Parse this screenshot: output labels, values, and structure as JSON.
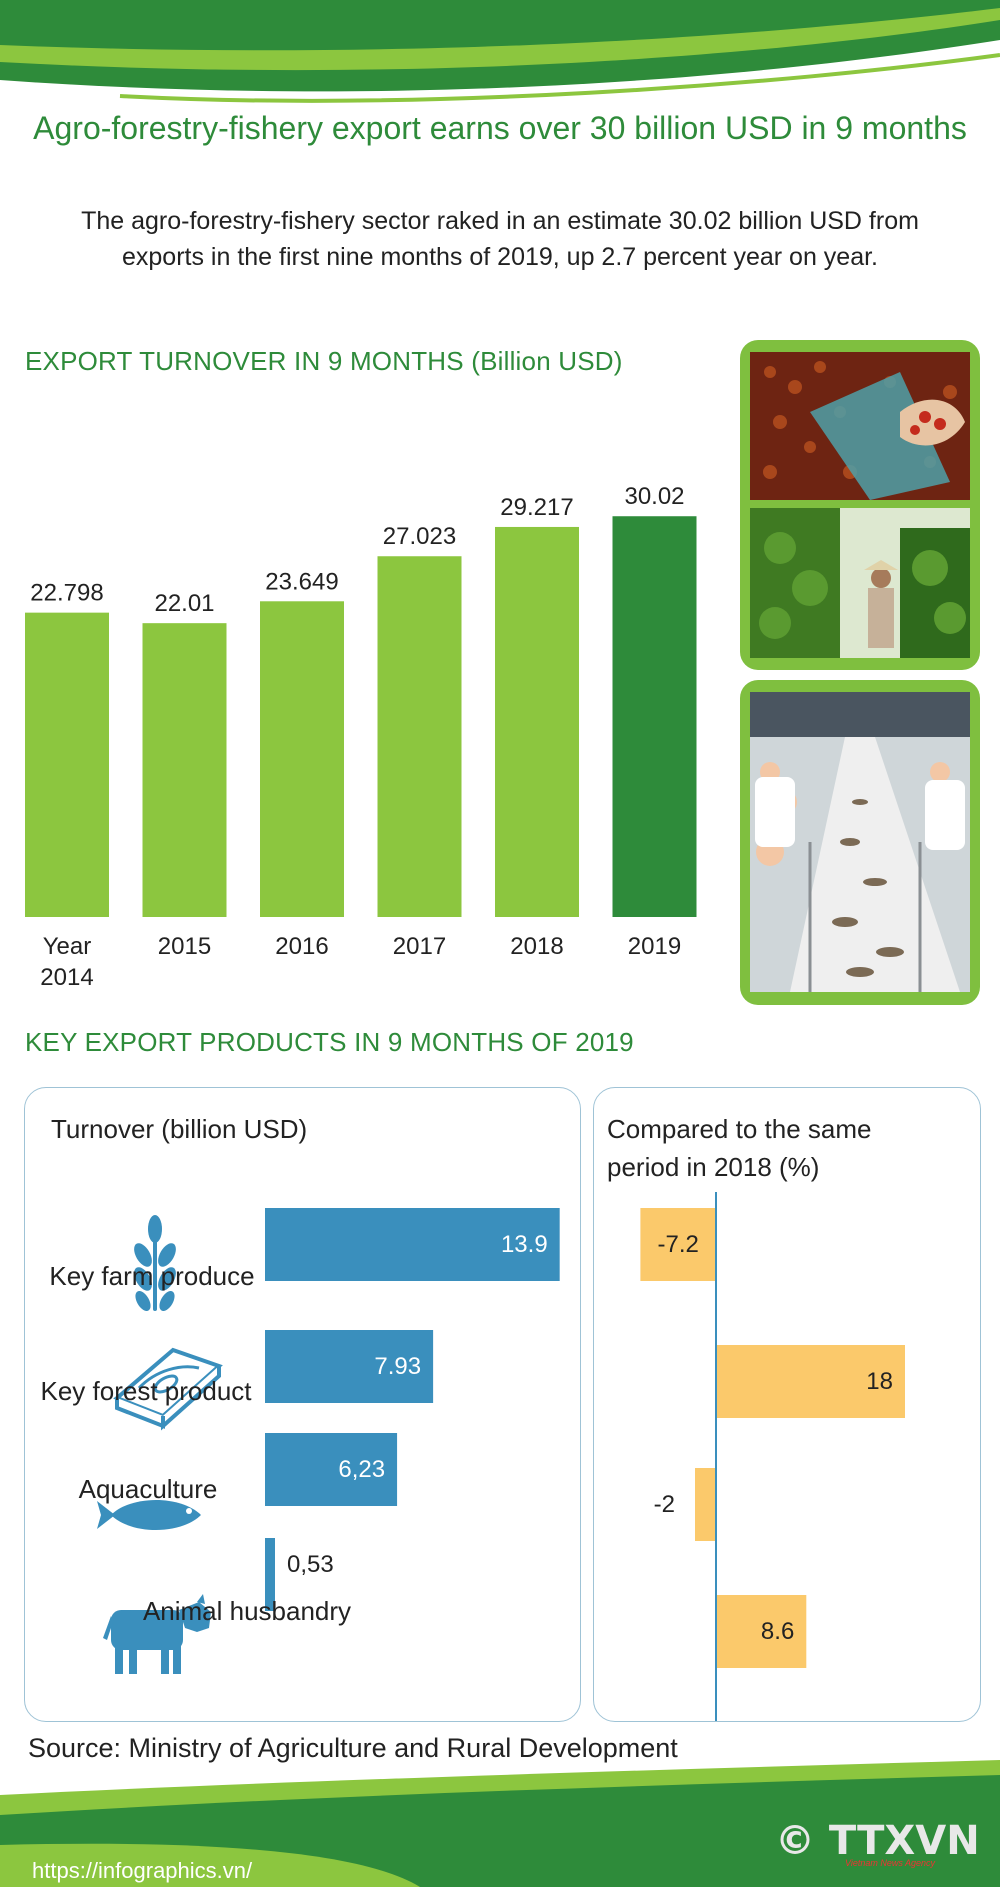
{
  "title": "Agro-forestry-fishery export earns over 30 billion USD in 9 months",
  "intro": "The agro-forestry-fishery sector raked in an estimate 30.02 billion USD from exports in the first nine months of 2019, up 2.7 percent year on year.",
  "sections": {
    "turnover_heading": "EXPORT TURNOVER IN 9 MONTHS (Billion USD)",
    "products_heading": "KEY EXPORT PRODUCTS IN 9 MONTHS OF 2019",
    "turnover_col_heading": "Turnover (billion USD)",
    "compare_col_heading_line1": "Compared to the same",
    "compare_col_heading_line2": "period in 2018 (%)"
  },
  "colors": {
    "brand_green": "#2e8b3a",
    "bar_light": "#8cc63f",
    "bar_dark": "#2e8b3a",
    "product_bar": "#3a8fbd",
    "change_bar": "#fbc96b",
    "icon_blue": "#3a8fbd"
  },
  "icons": [
    "wheat-icon",
    "wood-plank-icon",
    "fish-icon",
    "cow-icon"
  ],
  "chart_data": [
    {
      "type": "bar",
      "title": "EXPORT TURNOVER IN 9 MONTHS (Billion USD)",
      "categories": [
        "Year 2014",
        "2015",
        "2016",
        "2017",
        "2018",
        "2019"
      ],
      "values": [
        22.798,
        22.01,
        23.649,
        27.023,
        29.217,
        30.02
      ],
      "value_labels": [
        "22.798",
        "22.01",
        "23.649",
        "27.023",
        "29.217",
        "30.02"
      ],
      "highlight_index": 5
    },
    {
      "type": "bar",
      "orientation": "horizontal",
      "title": "Turnover (billion USD)",
      "categories": [
        "Key farm produce",
        "Key forest product",
        "Aquaculture",
        "Animal husbandry"
      ],
      "values": [
        13.9,
        7.93,
        6.23,
        0.53
      ],
      "value_labels": [
        "13.9",
        "7.93",
        "6,23",
        "0,53"
      ]
    },
    {
      "type": "bar",
      "orientation": "horizontal",
      "title": "Compared to the same period in 2018 (%)",
      "categories": [
        "Key farm produce",
        "Key forest product",
        "Aquaculture",
        "Animal husbandry"
      ],
      "values": [
        -7.2,
        18,
        -2,
        8.6
      ],
      "value_labels": [
        "-7.2",
        "18",
        "-2",
        "8.6"
      ]
    }
  ],
  "footer": {
    "source": "Source: Ministry of Agriculture and Rural Development",
    "url": "https://infographics.vn/",
    "logo": "© TTXVN",
    "logo_sub": "Vietnam News Agency"
  }
}
